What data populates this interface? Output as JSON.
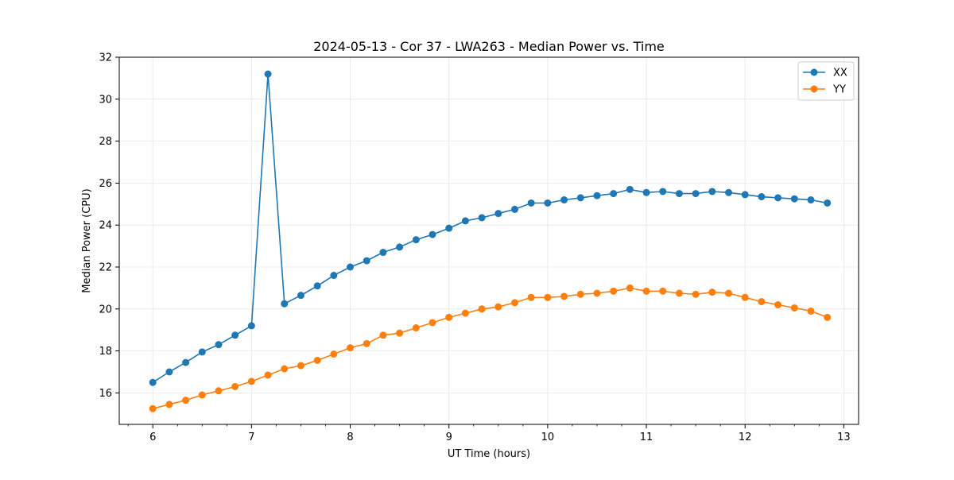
{
  "chart_data": {
    "type": "line",
    "title": "2024-05-13 - Cor 37 - LWA263 - Median Power vs. Time",
    "xlabel": "UT Time (hours)",
    "ylabel": "Median Power (CPU)",
    "xlim": [
      5.66,
      13.15
    ],
    "ylim": [
      14.5,
      32
    ],
    "xticks": [
      6,
      7,
      8,
      9,
      10,
      11,
      12,
      13
    ],
    "yticks": [
      16,
      18,
      20,
      22,
      24,
      26,
      28,
      30,
      32
    ],
    "grid": true,
    "legend": "top-right",
    "x": [
      6.0,
      6.1667,
      6.3333,
      6.5,
      6.6667,
      6.8333,
      7.0,
      7.1667,
      7.3333,
      7.5,
      7.6667,
      7.8333,
      8.0,
      8.1667,
      8.3333,
      8.5,
      8.6667,
      8.8333,
      9.0,
      9.1667,
      9.3333,
      9.5,
      9.6667,
      9.8333,
      10.0,
      10.1667,
      10.3333,
      10.5,
      10.6667,
      10.8333,
      11.0,
      11.1667,
      11.3333,
      11.5,
      11.6667,
      11.8333,
      12.0,
      12.1667,
      12.3333,
      12.5,
      12.6667,
      12.8333
    ],
    "series": [
      {
        "name": "XX",
        "color": "#1f77b4",
        "values": [
          16.5,
          17.0,
          17.45,
          17.95,
          18.3,
          18.75,
          19.2,
          31.2,
          20.25,
          20.65,
          21.1,
          21.6,
          22.0,
          22.3,
          22.7,
          22.95,
          23.3,
          23.55,
          23.85,
          24.2,
          24.35,
          24.55,
          24.75,
          25.05,
          25.05,
          25.2,
          25.3,
          25.4,
          25.5,
          25.7,
          25.55,
          25.6,
          25.5,
          25.5,
          25.6,
          25.55,
          25.45,
          25.35,
          25.3,
          25.25,
          25.2,
          25.05
        ]
      },
      {
        "name": "YY",
        "color": "#ff7f0e",
        "values": [
          15.25,
          15.45,
          15.65,
          15.9,
          16.1,
          16.3,
          16.55,
          16.85,
          17.15,
          17.3,
          17.55,
          17.85,
          18.15,
          18.35,
          18.75,
          18.85,
          19.1,
          19.35,
          19.6,
          19.8,
          20.0,
          20.1,
          20.3,
          20.55,
          20.55,
          20.6,
          20.7,
          20.75,
          20.85,
          21.0,
          20.85,
          20.85,
          20.75,
          20.7,
          20.8,
          20.75,
          20.55,
          20.35,
          20.2,
          20.05,
          19.9,
          19.6
        ]
      }
    ]
  }
}
